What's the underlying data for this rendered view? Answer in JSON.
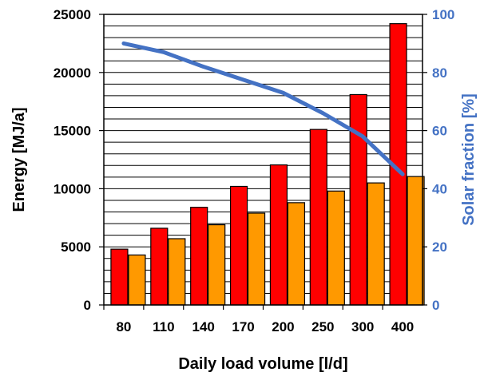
{
  "chart_data": {
    "type": "bar",
    "categories": [
      "80",
      "110",
      "140",
      "170",
      "200",
      "250",
      "300",
      "400"
    ],
    "series": [
      {
        "values": [
          4800,
          6600,
          8400,
          10200,
          12050,
          15100,
          18100,
          24200
        ],
        "color": "#ff0000",
        "axis": "left"
      },
      {
        "values": [
          4300,
          5700,
          6900,
          7900,
          8800,
          9800,
          10500,
          11050
        ],
        "color": "#ff9900",
        "axis": "left"
      },
      {
        "type": "line",
        "values": [
          90,
          87,
          82,
          77.5,
          73,
          66,
          58,
          45
        ],
        "color": "#4472c4",
        "axis": "right"
      }
    ],
    "xlabel": "Daily load volume  [l/d]",
    "ylabel": "Energy [MJ/a]",
    "y2label": "Solar fraction [%]",
    "ylim": [
      0,
      25000
    ],
    "y2lim": [
      0,
      100
    ],
    "yticks": [
      "0",
      "5000",
      "10000",
      "15000",
      "20000",
      "25000"
    ],
    "y2ticks": [
      "0",
      "20",
      "40",
      "60",
      "80",
      "100"
    ],
    "grid": true,
    "legend": "none"
  }
}
